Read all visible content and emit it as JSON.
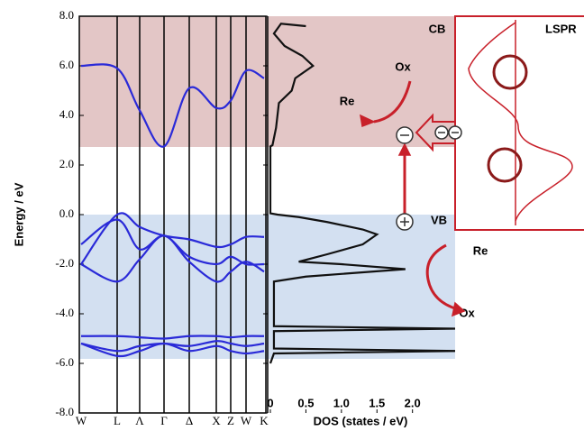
{
  "chart_data": [
    {
      "type": "line",
      "ylabel": "Energy / eV",
      "categories": [
        "W",
        "L",
        "Λ",
        "Γ",
        "Δ",
        "X",
        "Z",
        "W",
        "K"
      ],
      "ylim": [
        -8,
        8
      ],
      "yticks": [
        {
          "value": 8,
          "label": "8.0"
        },
        {
          "value": 6,
          "label": "6.0"
        },
        {
          "value": 4,
          "label": "4.0"
        },
        {
          "value": 2,
          "label": "2.0"
        },
        {
          "value": 0,
          "label": "0.0"
        },
        {
          "value": -2,
          "label": "-2.0"
        },
        {
          "value": -4,
          "label": "-4.0"
        },
        {
          "value": -6,
          "label": "-6.0"
        },
        {
          "value": -8,
          "label": "-8.0"
        }
      ],
      "color": "#2a2ad8",
      "series": [
        {
          "values": [
            6.0,
            5.9,
            4.2,
            2.75,
            5.1,
            4.3,
            4.6,
            5.8,
            5.5
          ]
        },
        {
          "values": [
            -2.0,
            0.0,
            -0.5,
            -0.85,
            -1.0,
            -1.3,
            -1.2,
            -0.9,
            -0.9
          ]
        },
        {
          "values": [
            -1.2,
            -0.2,
            -1.4,
            -0.85,
            -1.7,
            -2.0,
            -1.7,
            -2.0,
            -2.0
          ]
        },
        {
          "values": [
            -2.0,
            -2.7,
            -1.8,
            -0.85,
            -1.9,
            -2.7,
            -2.3,
            -1.9,
            -2.3
          ]
        },
        {
          "values": [
            -4.9,
            -4.9,
            -4.95,
            -5.0,
            -4.9,
            -4.9,
            -4.95,
            -4.9,
            -4.9
          ]
        },
        {
          "values": [
            -5.2,
            -5.5,
            -5.3,
            -5.2,
            -5.3,
            -5.1,
            -5.2,
            -5.3,
            -5.2
          ]
        },
        {
          "values": [
            -5.2,
            -5.7,
            -5.5,
            -5.2,
            -5.5,
            -5.3,
            -5.5,
            -5.6,
            -5.5
          ]
        }
      ]
    },
    {
      "type": "dos",
      "xlabel": "DOS (states / eV)",
      "color": "#111111",
      "xlim": [
        0,
        2.6
      ],
      "xticks": [
        0,
        0.5,
        {
          "value": 1,
          "label": "1.0"
        },
        1.5,
        {
          "value": 2,
          "label": "2.0"
        }
      ],
      "y": [
        7.6,
        7.7,
        7.3,
        6.8,
        6.4,
        6.0,
        5.5,
        5.0,
        4.5,
        3.5,
        2.8,
        2.75,
        0.05,
        0.0,
        -0.1,
        -0.3,
        -0.6,
        -0.8,
        -1.2,
        -1.6,
        -1.9,
        -2.0,
        -2.2,
        -2.5,
        -2.7,
        -4.5,
        -4.6,
        -4.7,
        -5.4,
        -5.5,
        -5.6,
        -6.0
      ],
      "x": [
        0.5,
        0.15,
        0.05,
        0.2,
        0.45,
        0.6,
        0.35,
        0.3,
        0.12,
        0.08,
        0.03,
        0,
        0,
        0.1,
        0.4,
        0.8,
        1.3,
        1.5,
        1.3,
        0.8,
        0.4,
        1.0,
        1.9,
        0.5,
        0.05,
        0.05,
        2.6,
        0.05,
        0.05,
        2.6,
        0.05,
        0
      ]
    }
  ],
  "annotations": {
    "cb": "CB",
    "vb": "VB",
    "ox_top": "Ox",
    "re_top": "Re",
    "re_bottom": "Re",
    "ox_bottom": "Ox",
    "lspr": "LSPR"
  }
}
